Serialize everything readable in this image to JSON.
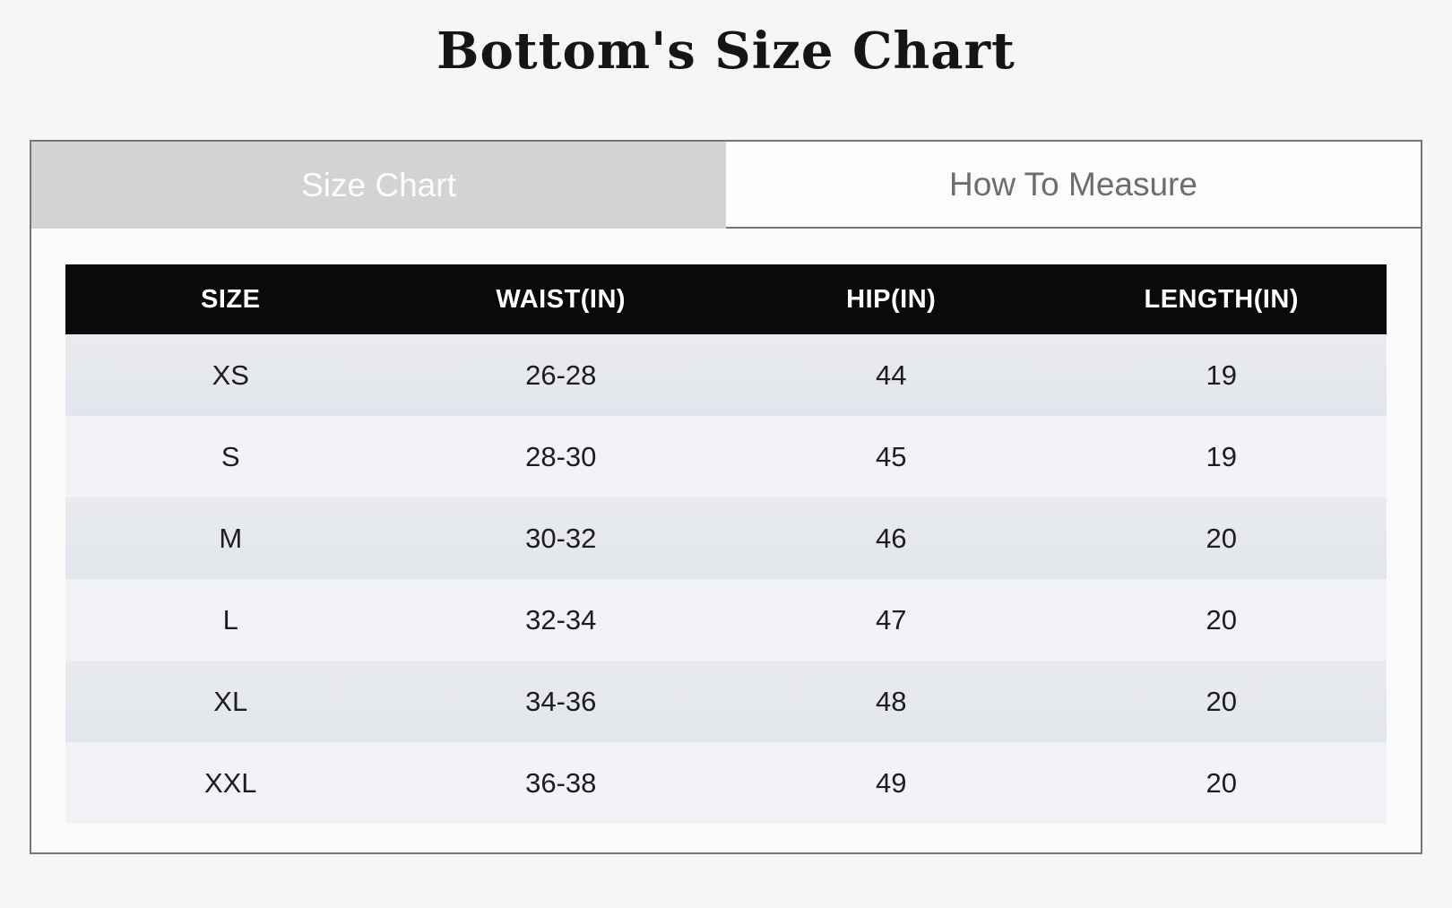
{
  "title": "Bottom's Size Chart",
  "tabs": [
    {
      "label": "Size Chart",
      "active": true
    },
    {
      "label": "How To Measure",
      "active": false
    }
  ],
  "table": {
    "headers": [
      "SIZE",
      "WAIST(IN)",
      "HIP(IN)",
      "LENGTH(IN)"
    ],
    "rows": [
      [
        "XS",
        "26-28",
        "44",
        "19"
      ],
      [
        "S",
        "28-30",
        "45",
        "19"
      ],
      [
        "M",
        "30-32",
        "46",
        "20"
      ],
      [
        "L",
        "32-34",
        "47",
        "20"
      ],
      [
        "XL",
        "34-36",
        "48",
        "20"
      ],
      [
        "XXL",
        "36-38",
        "49",
        "20"
      ]
    ]
  },
  "colors": {
    "page_bg": "#f6f6f6",
    "panel_bg": "#fbfbfb",
    "panel_border": "#757575",
    "tab_active_bg": "#d3d3d3",
    "tab_active_text": "#fdfdfd",
    "tab_inactive_bg": "#fcfcfc",
    "tab_inactive_text": "#6d6d6d",
    "header_bg": "#0a0a0a",
    "header_text": "#ffffff",
    "row_dark": "#e6e8ee",
    "row_light": "#f2f3f7",
    "cell_text": "#1d1d1f",
    "title_text": "#151515"
  }
}
